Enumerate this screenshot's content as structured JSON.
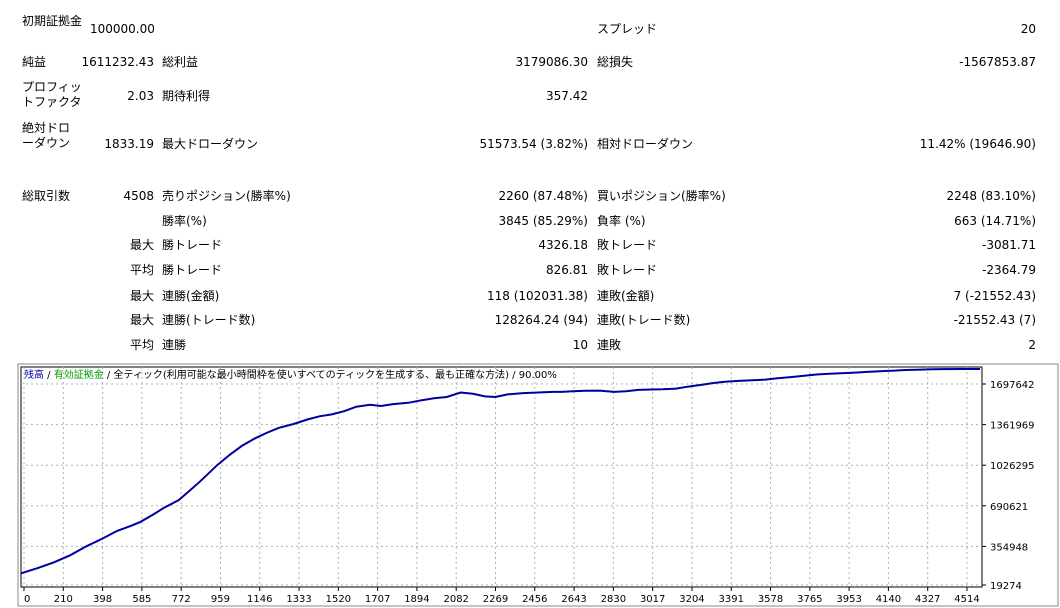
{
  "report": {
    "initial_deposit_label": "初期証拠金",
    "initial_deposit_value": "100000.00",
    "spread_label": "スプレッド",
    "spread_value": "20",
    "net_profit_label": "純益",
    "net_profit_value": "1611232.43",
    "gross_profit_label": "総利益",
    "gross_profit_value": "3179086.30",
    "gross_loss_label": "総損失",
    "gross_loss_value": "-1567853.87",
    "profit_factor_label": "プロフィットファクタ",
    "profit_factor_value": "2.03",
    "expected_payoff_label": "期待利得",
    "expected_payoff_value": "357.42",
    "abs_dd_label": "絶対ドローダウン",
    "abs_dd_value": "1833.19",
    "max_dd_label": "最大ドローダウン",
    "max_dd_value": "51573.54 (3.82%)",
    "rel_dd_label": "相対ドローダウン",
    "rel_dd_value": "11.42% (19646.90)",
    "total_trades_label": "総取引数",
    "total_trades_value": "4508",
    "short_label": "売りポジション(勝率%)",
    "short_value": "2260 (87.48%)",
    "long_label": "買いポジション(勝率%)",
    "long_value": "2248 (83.10%)",
    "win_rate_label": "勝率(%)",
    "win_rate_value": "3845 (85.29%)",
    "loss_rate_label": "負率 (%)",
    "loss_rate_value": "663 (14.71%)",
    "max_label": "最大",
    "avg_label": "平均",
    "win_trade_label": "勝トレード",
    "loss_trade_label": "敗トレード",
    "largest_win_value": "4326.18",
    "largest_loss_value": "-3081.71",
    "avg_win_value": "826.81",
    "avg_loss_value": "-2364.79",
    "consec_win_amount_label": "連勝(金額)",
    "consec_win_amount_value": "118 (102031.38)",
    "consec_loss_amount_label": "連敗(金額)",
    "consec_loss_amount_value": "7 (-21552.43)",
    "consec_win_count_label": "連勝(トレード数)",
    "consec_win_count_value": "128264.24 (94)",
    "consec_loss_count_label": "連敗(トレード数)",
    "consec_loss_count_value": "-21552.43 (7)",
    "avg_consec_win_label": "連勝",
    "avg_consec_win_value": "10",
    "avg_consec_loss_label": "連敗",
    "avg_consec_loss_value": "2"
  },
  "chart_header": {
    "balance": "残高",
    "sep1": " / ",
    "equity": "有効証拠金",
    "sep2": " / ",
    "model": "全ティック(利用可能な最小時間枠を使いすべてのティックを生成する、最も正確な方法)",
    "sep3": " / ",
    "quality": "90.00%"
  },
  "chart_data": {
    "type": "line",
    "title": "",
    "xlabel": "",
    "ylabel": "",
    "x_ticks": [
      "0",
      "210",
      "398",
      "585",
      "772",
      "959",
      "1146",
      "1333",
      "1520",
      "1707",
      "1894",
      "2082",
      "2269",
      "2456",
      "2643",
      "2830",
      "3017",
      "3204",
      "3391",
      "3578",
      "3765",
      "3953",
      "4140",
      "4327",
      "4514"
    ],
    "y_ticks": [
      "1697642",
      "1361969",
      "1026295",
      "690621",
      "354948",
      "19274"
    ],
    "ylim": [
      19274,
      1697642
    ],
    "xlim": [
      0,
      4700
    ],
    "grid": true,
    "series": [
      {
        "color": "#0000a0",
        "x": [
          0,
          80,
          160,
          240,
          320,
          398,
          470,
          540,
          585,
          650,
          700,
          772,
          830,
          880,
          959,
          1020,
          1080,
          1146,
          1200,
          1260,
          1333,
          1400,
          1460,
          1520,
          1580,
          1640,
          1707,
          1760,
          1820,
          1894,
          1960,
          2020,
          2082,
          2150,
          2210,
          2269,
          2320,
          2380,
          2456,
          2530,
          2600,
          2643,
          2700,
          2760,
          2830,
          2900,
          2960,
          3017,
          3080,
          3140,
          3204,
          3260,
          3330,
          3391,
          3450,
          3510,
          3578,
          3640,
          3700,
          3765,
          3830,
          3890,
          3953,
          4010,
          4080,
          4140,
          4200,
          4270,
          4327,
          4400,
          4460,
          4514,
          4600,
          4690
        ],
        "y": [
          110000,
          150000,
          195000,
          250000,
          320000,
          380000,
          440000,
          480000,
          510000,
          570000,
          620000,
          680000,
          760000,
          830000,
          950000,
          1030000,
          1100000,
          1160000,
          1200000,
          1240000,
          1270000,
          1305000,
          1330000,
          1345000,
          1370000,
          1405000,
          1420000,
          1410000,
          1425000,
          1435000,
          1455000,
          1470000,
          1480000,
          1515000,
          1505000,
          1485000,
          1480000,
          1500000,
          1510000,
          1515000,
          1520000,
          1520000,
          1525000,
          1528000,
          1530000,
          1520000,
          1525000,
          1535000,
          1538000,
          1540000,
          1545000,
          1560000,
          1575000,
          1590000,
          1600000,
          1605000,
          1610000,
          1615000,
          1625000,
          1635000,
          1645000,
          1655000,
          1660000,
          1665000,
          1670000,
          1675000,
          1680000,
          1685000,
          1690000,
          1693000,
          1696000,
          1697000,
          1697642,
          1697642
        ]
      }
    ]
  }
}
